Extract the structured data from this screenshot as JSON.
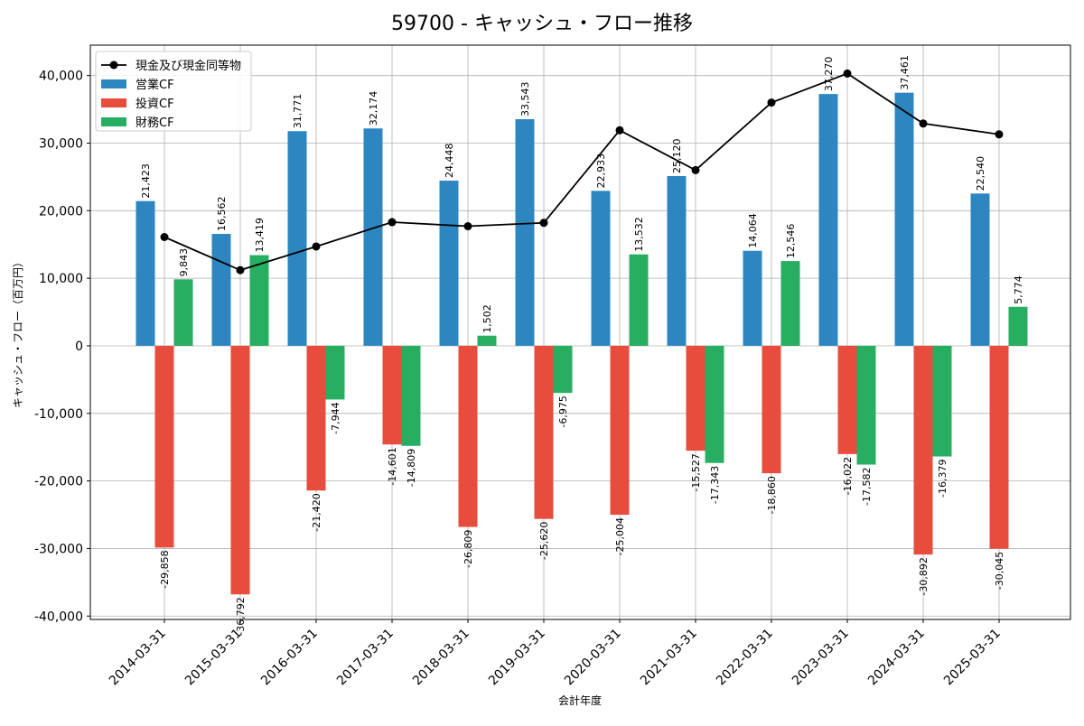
{
  "chart_data": {
    "type": "bar",
    "title": "59700 - キャッシュ・フロー推移",
    "xlabel": "会計年度",
    "ylabel": "キャッシュ・フロー（百万円）",
    "categories": [
      "2014-03-31",
      "2015-03-31",
      "2016-03-31",
      "2017-03-31",
      "2018-03-31",
      "2019-03-31",
      "2020-03-31",
      "2021-03-31",
      "2022-03-31",
      "2023-03-31",
      "2024-03-31",
      "2025-03-31"
    ],
    "ylim": [
      -40500,
      44500
    ],
    "yticks": [
      -40000,
      -30000,
      -20000,
      -10000,
      0,
      10000,
      20000,
      30000,
      40000
    ],
    "ytick_labels": [
      "-40,000",
      "-30,000",
      "-20,000",
      "-10,000",
      "0",
      "10,000",
      "20,000",
      "30,000",
      "40,000"
    ],
    "grid": true,
    "legend_position": "top-left",
    "series": [
      {
        "name": "営業CF",
        "kind": "bar",
        "color": "#2e86c1",
        "values": [
          21423,
          16562,
          31771,
          32174,
          24448,
          33543,
          22933,
          25120,
          14064,
          37270,
          37461,
          22540
        ],
        "labels": [
          "21,423",
          "16,562",
          "31,771",
          "32,174",
          "24,448",
          "33,543",
          "22,933",
          "25,120",
          "14,064",
          "37,270",
          "37,461",
          "22,540"
        ]
      },
      {
        "name": "投資CF",
        "kind": "bar",
        "color": "#e74c3c",
        "values": [
          -29858,
          -36792,
          -21420,
          -14601,
          -26809,
          -25620,
          -25004,
          -15527,
          -18860,
          -16022,
          -30892,
          -30045
        ],
        "labels": [
          "-29,858",
          "-36,792",
          "-21,420",
          "-14,601",
          "-26,809",
          "-25,620",
          "-25,004",
          "-15,527",
          "-18,860",
          "-16,022",
          "-30,892",
          "-30,045"
        ]
      },
      {
        "name": "財務CF",
        "kind": "bar",
        "color": "#27ae60",
        "values": [
          9843,
          13419,
          -7944,
          -14809,
          1502,
          -6975,
          13532,
          -17343,
          12546,
          -17582,
          -16379,
          5774
        ],
        "labels": [
          "9,843",
          "13,419",
          "-7,944",
          "-14,809",
          "1,502",
          "-6,975",
          "13,532",
          "-17,343",
          "12,546",
          "-17,582",
          "-16,379",
          "5,774"
        ]
      },
      {
        "name": "現金及び現金同等物",
        "kind": "line",
        "color": "#000000",
        "values": [
          16100,
          11200,
          14700,
          18300,
          17700,
          18200,
          31900,
          26000,
          36000,
          40300,
          32900,
          31300
        ]
      }
    ]
  }
}
